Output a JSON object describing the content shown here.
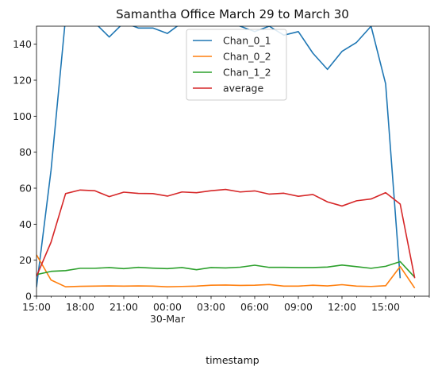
{
  "chart_data": {
    "type": "line",
    "title": "Samantha Office March 29 to March 30",
    "xlabel": "timestamp",
    "ylabel": "",
    "x_unit": "hours",
    "x": [
      15,
      16,
      17,
      18,
      19,
      20,
      21,
      22,
      23,
      24,
      25,
      26,
      27,
      28,
      29,
      30,
      31,
      32,
      33,
      34,
      35,
      36,
      37,
      38,
      39,
      40,
      41,
      42
    ],
    "xlim": [
      15,
      42
    ],
    "ylim": [
      0,
      150
    ],
    "yticks": [
      0,
      20,
      40,
      60,
      80,
      100,
      120,
      140
    ],
    "xticks": [
      {
        "x": 15,
        "label": "15:00",
        "sublabel": ""
      },
      {
        "x": 18,
        "label": "18:00",
        "sublabel": ""
      },
      {
        "x": 21,
        "label": "21:00",
        "sublabel": ""
      },
      {
        "x": 24,
        "label": "00:00",
        "sublabel": "30-Mar"
      },
      {
        "x": 27,
        "label": "03:00",
        "sublabel": ""
      },
      {
        "x": 30,
        "label": "06:00",
        "sublabel": ""
      },
      {
        "x": 33,
        "label": "09:00",
        "sublabel": ""
      },
      {
        "x": 36,
        "label": "12:00",
        "sublabel": ""
      },
      {
        "x": 39,
        "label": "15:00",
        "sublabel": ""
      }
    ],
    "grid": false,
    "legend_position": "top-center",
    "series": [
      {
        "name": "Chan_0_1",
        "color": "#1f77b4",
        "values": [
          5,
          70,
          155,
          160,
          152,
          144,
          152,
          149,
          149,
          146,
          152,
          155,
          156,
          154,
          150,
          147,
          150,
          145,
          147,
          135,
          126,
          136,
          141,
          150,
          118,
          10,
          null,
          null
        ]
      },
      {
        "name": "Chan_0_2",
        "color": "#ff7f0e",
        "values": [
          23,
          9,
          5.2,
          5.5,
          5.6,
          5.7,
          5.6,
          5.7,
          5.6,
          5.2,
          5.4,
          5.6,
          6.1,
          6.2,
          6.0,
          6.1,
          6.5,
          5.6,
          5.6,
          6.1,
          5.7,
          6.4,
          5.6,
          5.4,
          5.8,
          16.5,
          4.5,
          null
        ]
      },
      {
        "name": "Chan_1_2",
        "color": "#2ca02c",
        "values": [
          12,
          13.8,
          14.2,
          15.5,
          15.5,
          15.9,
          15.3,
          16,
          15.6,
          15.3,
          15.9,
          14.7,
          15.9,
          15.7,
          16.1,
          17.2,
          16,
          16,
          15.9,
          15.9,
          16.2,
          17.3,
          16.4,
          15.5,
          16.6,
          19.2,
          10.5,
          null
        ]
      },
      {
        "name": "average",
        "color": "#d62728",
        "values": [
          11,
          30,
          57,
          59,
          58.6,
          55.3,
          57.8,
          57.1,
          57.0,
          55.6,
          57.9,
          57.5,
          58.6,
          59.3,
          57.9,
          58.5,
          56.7,
          57.2,
          55.5,
          56.5,
          52.4,
          50.1,
          53.0,
          54.0,
          57.5,
          51.2,
          10,
          null
        ]
      }
    ]
  }
}
